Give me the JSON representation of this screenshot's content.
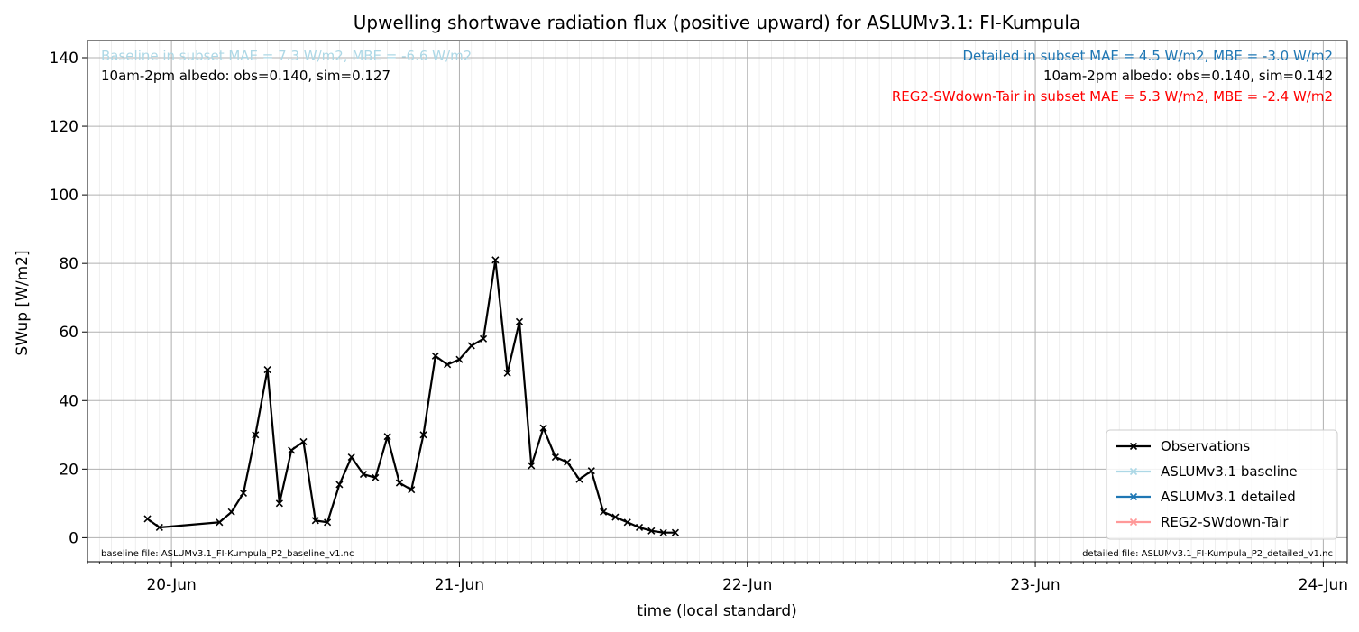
{
  "chart_data": {
    "type": "line",
    "title": "Upwelling shortwave radiation flux (positive upward) for ASLUMv3.1: FI-Kumpula",
    "xlabel": "time (local standard)",
    "ylabel": "SWup [W/m2]",
    "ylim": [
      -7,
      145
    ],
    "xlim": [
      "2014-06-19T17:00",
      "2014-06-24T02:00"
    ],
    "grid": true,
    "legend_position": "lower-right",
    "x_ticks": [
      {
        "label": "20-Jun",
        "t": "2014-06-20T00:00"
      },
      {
        "label": "21-Jun",
        "t": "2014-06-21T00:00"
      },
      {
        "label": "22-Jun",
        "t": "2014-06-22T00:00"
      },
      {
        "label": "23-Jun",
        "t": "2014-06-23T00:00"
      },
      {
        "label": "24-Jun",
        "t": "2014-06-24T00:00"
      }
    ],
    "y_ticks": [
      0,
      20,
      40,
      60,
      80,
      100,
      120,
      140
    ],
    "annotations": {
      "baseline_stats": "Baseline in subset MAE = 7.3 W/m2, MBE = -6.6 W/m2",
      "baseline_albedo": "10am-2pm albedo: obs=0.140, sim=0.127",
      "detailed_stats": "Detailed in subset MAE = 4.5 W/m2, MBE = -3.0 W/m2",
      "detailed_albedo": "10am-2pm albedo: obs=0.140, sim=0.142",
      "reg2_stats": "REG2-SWdown-Tair in subset MAE = 5.3 W/m2, MBE = -2.4 W/m2",
      "baseline_file": "baseline file: ASLUMv3.1_FI-Kumpula_P2_baseline_v1.nc",
      "detailed_file": "detailed file: ASLUMv3.1_FI-Kumpula_P2_detailed_v1.nc"
    },
    "series": [
      {
        "name": "Observations",
        "color": "#000000",
        "marker": "x",
        "points": [
          [
            "2014-06-19T22:00",
            5.5
          ],
          [
            "2014-06-19T23:00",
            3
          ],
          [
            "2014-06-20T04:00",
            4.5
          ],
          [
            "2014-06-20T05:00",
            7.5
          ],
          [
            "2014-06-20T06:00",
            13
          ],
          [
            "2014-06-20T07:00",
            30
          ],
          [
            "2014-06-20T08:00",
            49
          ],
          [
            "2014-06-20T09:00",
            10
          ],
          [
            "2014-06-20T10:00",
            25.5
          ],
          [
            "2014-06-20T11:00",
            28
          ],
          [
            "2014-06-20T12:00",
            5
          ],
          [
            "2014-06-20T13:00",
            4.5
          ],
          [
            "2014-06-20T14:00",
            15.5
          ],
          [
            "2014-06-20T15:00",
            23.5
          ],
          [
            "2014-06-20T16:00",
            18.5
          ],
          [
            "2014-06-20T17:00",
            17.5
          ],
          [
            "2014-06-20T18:00",
            29.5
          ],
          [
            "2014-06-20T19:00",
            16
          ],
          [
            "2014-06-20T20:00",
            14
          ],
          [
            "2014-06-20T21:00",
            30
          ],
          [
            "2014-06-20T22:00",
            53
          ],
          [
            "2014-06-20T23:00",
            50.5
          ],
          [
            "2014-06-21T00:00",
            52
          ],
          [
            "2014-06-21T01:00",
            56
          ],
          [
            "2014-06-21T02:00",
            58
          ],
          [
            "2014-06-21T03:00",
            81
          ],
          [
            "2014-06-21T04:00",
            48
          ],
          [
            "2014-06-21T05:00",
            63
          ],
          [
            "2014-06-21T06:00",
            21
          ],
          [
            "2014-06-21T07:00",
            32
          ],
          [
            "2014-06-21T08:00",
            23.5
          ],
          [
            "2014-06-21T09:00",
            22
          ],
          [
            "2014-06-21T10:00",
            17
          ],
          [
            "2014-06-21T11:00",
            19.5
          ],
          [
            "2014-06-21T12:00",
            7.5
          ],
          [
            "2014-06-21T13:00",
            6
          ],
          [
            "2014-06-21T14:00",
            4.5
          ],
          [
            "2014-06-21T15:00",
            3
          ],
          [
            "2014-06-21T16:00",
            2
          ],
          [
            "2014-06-21T17:00",
            1.5
          ],
          [
            "2014-06-21T18:00",
            1.5
          ]
        ]
      }
    ],
    "legend_entries": [
      {
        "label": "Observations",
        "color": "#000000"
      },
      {
        "label": "ASLUMv3.1 baseline",
        "color": "#add8e6"
      },
      {
        "label": "ASLUMv3.1 detailed",
        "color": "#1f77b4"
      },
      {
        "label": "REG2-SWdown-Tair",
        "color": "#ff9999"
      }
    ]
  }
}
